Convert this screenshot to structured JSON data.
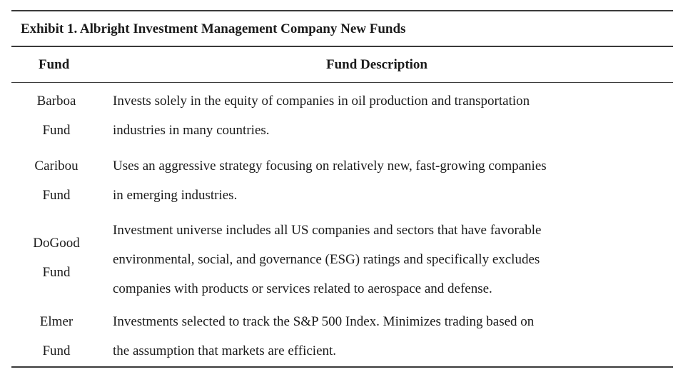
{
  "exhibit": {
    "title": "Exhibit 1. Albright Investment Management Company New Funds",
    "columns": {
      "fund": "Fund",
      "description": "Fund Description"
    },
    "rows": [
      {
        "fund_lines": [
          "Barboa",
          "Fund"
        ],
        "description_lines": [
          "Invests solely in the equity of companies in oil production and transportation",
          "industries in many countries."
        ]
      },
      {
        "fund_lines": [
          "Caribou",
          "Fund"
        ],
        "description_lines": [
          "Uses an aggressive strategy focusing on relatively new, fast-growing companies",
          "in emerging industries."
        ]
      },
      {
        "fund_lines": [
          "DoGood",
          "Fund"
        ],
        "description_lines": [
          "Investment universe includes all US companies and sectors that have favorable",
          "environmental, social, and governance (ESG) ratings and specifically excludes",
          "companies with products or services related to aerospace and defense."
        ]
      },
      {
        "fund_lines": [
          "Elmer",
          "Fund"
        ],
        "description_lines": [
          "Investments selected to track the S&P 500 Index. Minimizes trading based on",
          "the assumption that markets are efficient."
        ]
      }
    ]
  }
}
